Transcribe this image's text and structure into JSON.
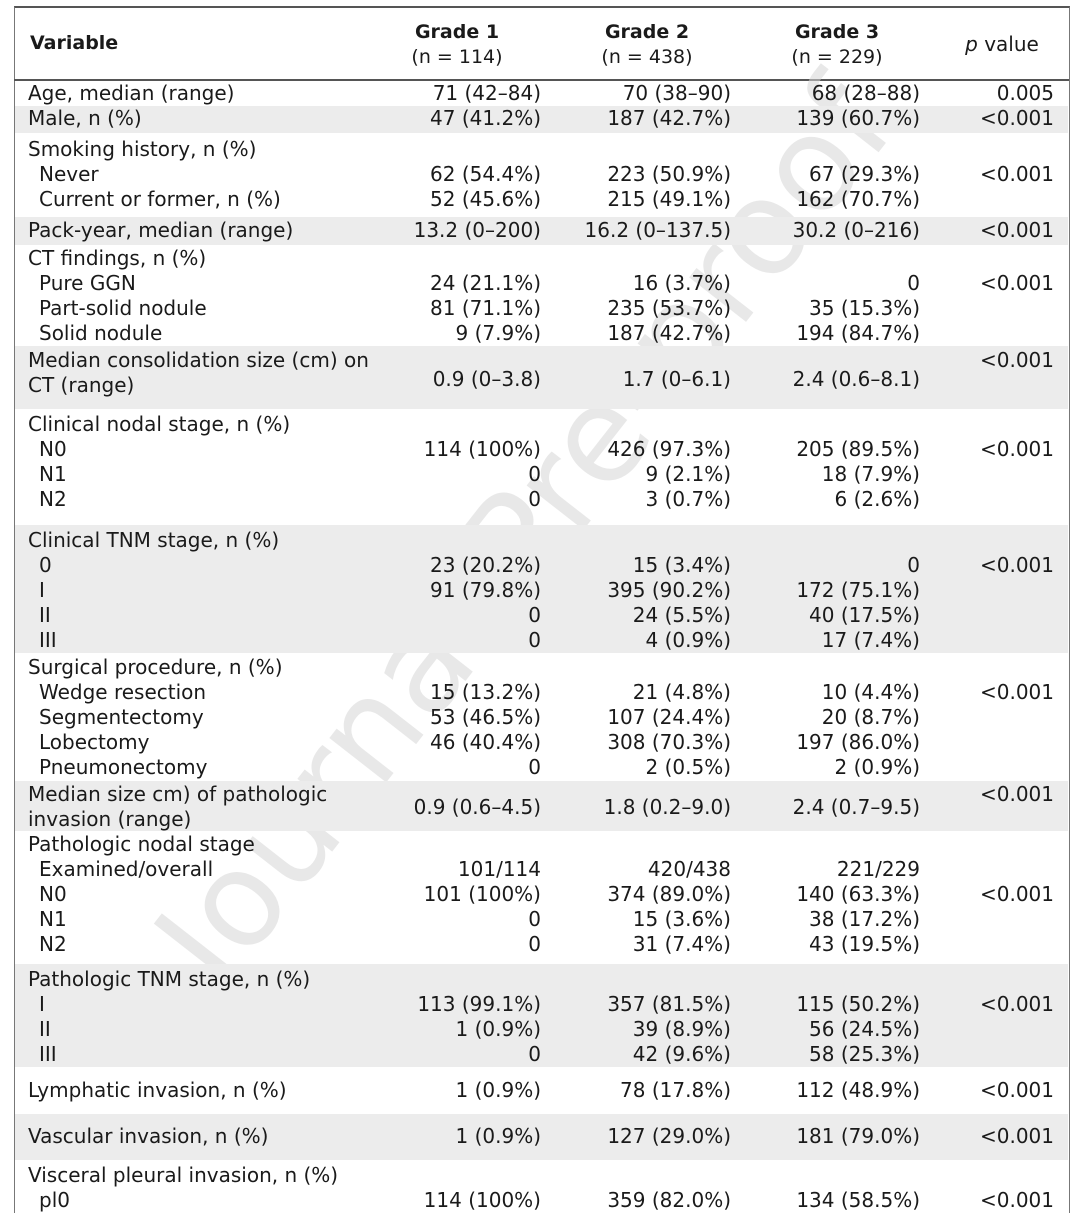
{
  "header": {
    "variable": "Variable",
    "grade1_title": "Grade 1",
    "grade1_n": "(n = 114)",
    "grade2_title": "Grade 2",
    "grade2_n": "(n = 438)",
    "grade3_title": "Grade 3",
    "grade3_n": "(n = 229)",
    "p_italic": "p",
    "p_rest": " value"
  },
  "watermark": "Journal Pre-proof",
  "rows": {
    "age": {
      "label": "Age, median (range)",
      "g1": "71 (42–84)",
      "g2": "70 (38–90)",
      "g3": "68 (28–88)",
      "p": "0.005"
    },
    "male": {
      "label": "Male, n (%)",
      "g1": "47 (41.2%)",
      "g2": "187 (42.7%)",
      "g3": "139 (60.7%)",
      "p": "<0.001"
    },
    "smoking": {
      "label": "Smoking history, n (%)"
    },
    "never": {
      "label": "Never",
      "g1": "62 (54.4%)",
      "g2": "223 (50.9%)",
      "g3": "67 (29.3%)",
      "p": "<0.001"
    },
    "current": {
      "label": "Current or former, n (%)",
      "g1": "52 (45.6%)",
      "g2": "215 (49.1%)",
      "g3": "162 (70.7%)"
    },
    "packyear": {
      "label": "Pack-year, median (range)",
      "g1": "13.2 (0–200)",
      "g2": "16.2 (0–137.5)",
      "g3": "30.2 (0–216)",
      "p": "<0.001"
    },
    "ct": {
      "label": "CT findings, n (%)"
    },
    "pureggn": {
      "label": "Pure GGN",
      "g1": "24 (21.1%)",
      "g2": "16 (3.7%)",
      "g3": "0",
      "p": "<0.001"
    },
    "partsolid": {
      "label": "Part-solid nodule",
      "g1": "81 (71.1%)",
      "g2": "235 (53.7%)",
      "g3": "35 (15.3%)"
    },
    "solid": {
      "label": "Solid nodule",
      "g1": "9 (7.9%)",
      "g2": "187 (42.7%)",
      "g3": "194 (84.7%)"
    },
    "consol_l1": {
      "label": "Median consolidation size (cm) on",
      "p": "<0.001"
    },
    "consol_l2": {
      "label": "CT (range)",
      "g1": "0.9 (0–3.8)",
      "g2": "1.7 (0–6.1)",
      "g3": "2.4 (0.6–8.1)"
    },
    "cn": {
      "label": "Clinical nodal stage, n (%)"
    },
    "cn0": {
      "label": "N0",
      "g1": "114 (100%)",
      "g2": "426 (97.3%)",
      "g3": "205 (89.5%)",
      "p": "<0.001"
    },
    "cn1": {
      "label": "N1",
      "g1": "0",
      "g2": "9 (2.1%)",
      "g3": "18 (7.9%)"
    },
    "cn2": {
      "label": "N2",
      "g1": "0",
      "g2": "3 (0.7%)",
      "g3": "6 (2.6%)"
    },
    "ctnm": {
      "label": "Clinical TNM stage, n (%)"
    },
    "ctnm0": {
      "label": "0",
      "g1": "23 (20.2%)",
      "g2": "15 (3.4%)",
      "g3": "0",
      "p": "<0.001"
    },
    "ctnm1": {
      "label": "I",
      "g1": "91 (79.8%)",
      "g2": "395 (90.2%)",
      "g3": "172 (75.1%)"
    },
    "ctnm2": {
      "label": "II",
      "g1": "0",
      "g2": "24 (5.5%)",
      "g3": "40 (17.5%)"
    },
    "ctnm3": {
      "label": "III",
      "g1": "0",
      "g2": "4 (0.9%)",
      "g3": "17 (7.4%)"
    },
    "surg": {
      "label": "Surgical procedure, n (%)"
    },
    "wedge": {
      "label": "Wedge resection",
      "g1": "15 (13.2%)",
      "g2": "21 (4.8%)",
      "g3": "10 (4.4%)",
      "p": "<0.001"
    },
    "segment": {
      "label": "Segmentectomy",
      "g1": "53 (46.5%)",
      "g2": "107 (24.4%)",
      "g3": "20 (8.7%)"
    },
    "lobe": {
      "label": "Lobectomy",
      "g1": "46 (40.4%)",
      "g2": "308 (70.3%)",
      "g3": "197 (86.0%)"
    },
    "pneumo": {
      "label": "Pneumonectomy",
      "g1": "0",
      "g2": "2 (0.5%)",
      "g3": "2 (0.9%)"
    },
    "inv_l1": {
      "label": "Median size cm) of pathologic",
      "p": "<0.001"
    },
    "inv_l2": {
      "label": "invasion (range)",
      "g1": "0.9 (0.6–4.5)",
      "g2": "1.8 (0.2–9.0)",
      "g3": "2.4 (0.7–9.5)"
    },
    "pn": {
      "label": "Pathologic nodal stage"
    },
    "examined": {
      "label": "Examined/overall",
      "g1": "101/114",
      "g2": "420/438",
      "g3": "221/229"
    },
    "pn0": {
      "label": "N0",
      "g1": "101 (100%)",
      "g2": "374 (89.0%)",
      "g3": "140 (63.3%)",
      "p": "<0.001"
    },
    "pn1": {
      "label": "N1",
      "g1": "0",
      "g2": "15 (3.6%)",
      "g3": "38 (17.2%)"
    },
    "pn2": {
      "label": "N2",
      "g1": "0",
      "g2": "31 (7.4%)",
      "g3": "43 (19.5%)"
    },
    "ptnm": {
      "label": "Pathologic TNM stage, n (%)"
    },
    "ptnm1": {
      "label": "I",
      "g1": "113 (99.1%)",
      "g2": "357 (81.5%)",
      "g3": "115 (50.2%)",
      "p": "<0.001"
    },
    "ptnm2": {
      "label": "II",
      "g1": "1 (0.9%)",
      "g2": "39 (8.9%)",
      "g3": "56 (24.5%)"
    },
    "ptnm3": {
      "label": "III",
      "g1": "0",
      "g2": "42 (9.6%)",
      "g3": "58 (25.3%)"
    },
    "lymph": {
      "label": "Lymphatic invasion, n (%)",
      "g1": "1 (0.9%)",
      "g2": "78 (17.8%)",
      "g3": "112 (48.9%)",
      "p": "<0.001"
    },
    "vasc": {
      "label": "Vascular invasion, n (%)",
      "g1": "1 (0.9%)",
      "g2": "127 (29.0%)",
      "g3": "181 (79.0%)",
      "p": "<0.001"
    },
    "visc": {
      "label": "Visceral pleural invasion, n (%)"
    },
    "pl0": {
      "label": "pl0",
      "g1": "114 (100%)",
      "g2": "359 (82.0%)",
      "g3": "134 (58.5%)",
      "p": "<0.001"
    }
  }
}
